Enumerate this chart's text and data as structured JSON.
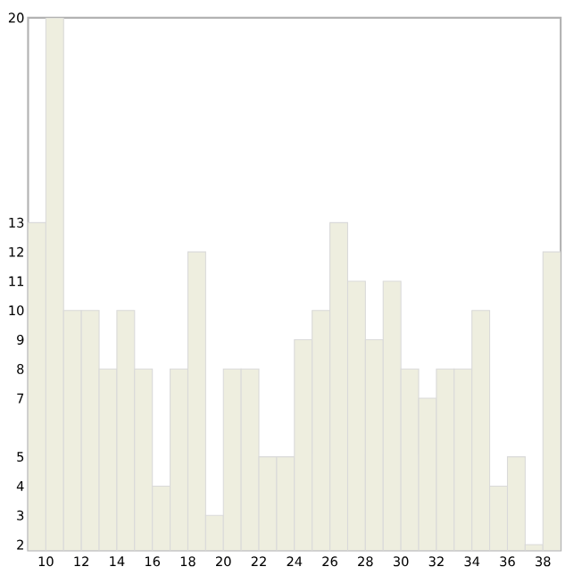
{
  "chart_data": {
    "type": "histogram",
    "bins": [
      9,
      10,
      11,
      12,
      13,
      14,
      15,
      16,
      17,
      18,
      19,
      20,
      21,
      22,
      23,
      24,
      25,
      26,
      27,
      28,
      29,
      30,
      31,
      32,
      33,
      34,
      35,
      36,
      37,
      38,
      39
    ],
    "values": [
      13,
      20,
      10,
      10,
      8,
      10,
      8,
      4,
      8,
      12,
      3,
      8,
      8,
      5,
      5,
      9,
      10,
      13,
      11,
      9,
      11,
      8,
      7,
      8,
      8,
      10,
      4,
      5,
      2,
      12
    ],
    "color": "#eeeedf",
    "xlim": [
      9,
      39
    ],
    "xticks": [
      10,
      12,
      14,
      16,
      18,
      20,
      22,
      24,
      26,
      28,
      30,
      32,
      34,
      36,
      38
    ],
    "ylim": [
      1.8,
      20
    ],
    "yticks": [
      2,
      3,
      4,
      5,
      7,
      8,
      9,
      10,
      11,
      12,
      13,
      20
    ],
    "grid": false
  }
}
